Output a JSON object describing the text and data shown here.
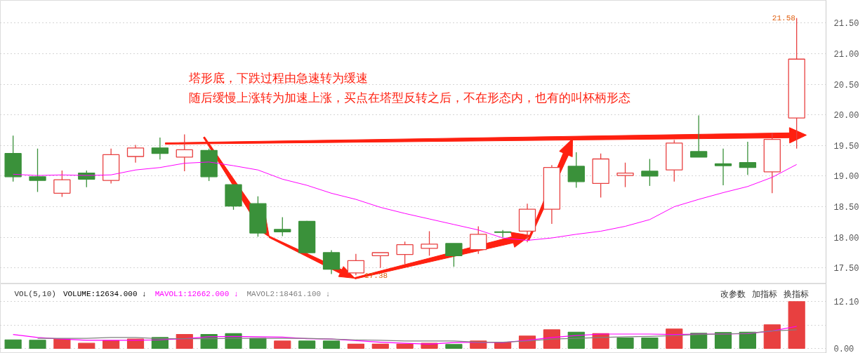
{
  "chart_data": [
    {
      "type": "candlestick",
      "categories": [
        null,
        null,
        null,
        null,
        null,
        null,
        null,
        null,
        null,
        null,
        null,
        null,
        null,
        null,
        null,
        null,
        null,
        null,
        null,
        null,
        null,
        null,
        null,
        null,
        null,
        null,
        null,
        null,
        null,
        null,
        null,
        null,
        null
      ],
      "ohlc": [
        [
          19.37,
          19.66,
          18.91,
          18.99
        ],
        [
          18.99,
          19.45,
          18.74,
          18.93
        ],
        [
          18.72,
          19.09,
          18.66,
          18.94
        ],
        [
          19.05,
          19.09,
          18.82,
          18.95
        ],
        [
          18.93,
          19.45,
          18.88,
          19.35
        ],
        [
          19.32,
          19.51,
          19.22,
          19.46
        ],
        [
          19.46,
          19.63,
          19.27,
          19.37
        ],
        [
          19.31,
          19.68,
          19.08,
          19.43
        ],
        [
          19.42,
          19.45,
          18.92,
          18.99
        ],
        [
          18.86,
          18.86,
          18.45,
          18.51
        ],
        [
          18.55,
          18.67,
          18.01,
          18.07
        ],
        [
          18.13,
          18.33,
          18.02,
          18.09
        ],
        [
          18.26,
          18.27,
          17.74,
          17.75
        ],
        [
          17.75,
          17.79,
          17.4,
          17.48
        ],
        [
          17.42,
          17.73,
          17.38,
          17.62
        ],
        [
          17.7,
          17.75,
          17.5,
          17.75
        ],
        [
          17.72,
          17.93,
          17.56,
          17.88
        ],
        [
          17.82,
          18.1,
          17.7,
          17.89
        ],
        [
          17.9,
          17.9,
          17.52,
          17.7
        ],
        [
          17.8,
          18.18,
          17.73,
          18.05
        ],
        [
          18.09,
          18.12,
          18.0,
          18.08
        ],
        [
          18.1,
          18.55,
          17.92,
          18.46
        ],
        [
          18.46,
          19.18,
          18.22,
          19.14
        ],
        [
          19.16,
          19.39,
          18.81,
          18.91
        ],
        [
          18.88,
          19.37,
          18.65,
          19.28
        ],
        [
          19.01,
          19.22,
          18.82,
          19.05
        ],
        [
          19.08,
          19.28,
          18.84,
          19.0
        ],
        [
          19.1,
          19.59,
          18.91,
          19.54
        ],
        [
          19.4,
          19.99,
          19.31,
          19.31
        ],
        [
          19.2,
          19.45,
          18.85,
          19.17
        ],
        [
          19.22,
          19.56,
          19.02,
          19.14
        ],
        [
          19.07,
          19.7,
          18.72,
          19.6
        ],
        [
          19.95,
          21.58,
          19.45,
          20.91
        ]
      ],
      "colors": [
        "#3a913a",
        "#3a913a",
        "#e84040",
        "#3a913a",
        "#e84040",
        "#e84040",
        "#3a913a",
        "#e84040",
        "#3a913a",
        "#3a913a",
        "#3a913a",
        "#3a913a",
        "#3a913a",
        "#3a913a",
        "#e84040",
        "#e84040",
        "#e84040",
        "#e84040",
        "#3a913a",
        "#e84040",
        "#3a913a",
        "#e84040",
        "#e84040",
        "#3a913a",
        "#e84040",
        "#e84040",
        "#3a913a",
        "#e84040",
        "#3a913a",
        "#3a913a",
        "#3a913a",
        "#e84040",
        "#e84040"
      ],
      "series": [
        {
          "type": "line",
          "color": "#ff00ff",
          "values": [
            19.03,
            19.01,
            19.02,
            19.01,
            19.02,
            19.1,
            19.14,
            19.21,
            19.23,
            19.17,
            19.1,
            18.95,
            18.85,
            18.72,
            18.62,
            18.49,
            18.39,
            18.3,
            18.21,
            18.12,
            17.99,
            17.95,
            17.99,
            18.05,
            18.1,
            18.18,
            18.29,
            18.5,
            18.62,
            18.73,
            18.83,
            18.98,
            19.19
          ]
        }
      ],
      "ylim": [
        17.24,
        21.87
      ],
      "yticks": [
        {
          "value": 17.5,
          "label": "17.50"
        },
        {
          "value": 18.0,
          "label": "18.00"
        },
        {
          "value": 18.5,
          "label": "18.50"
        },
        {
          "value": 19.0,
          "label": "19.00"
        },
        {
          "value": 19.5,
          "label": "19.50"
        },
        {
          "value": 20.0,
          "label": "20.00"
        },
        {
          "value": 20.5,
          "label": "20.50"
        },
        {
          "value": 21.0,
          "label": "21.00"
        },
        {
          "value": 21.5,
          "label": "21.50"
        }
      ],
      "grid": "y",
      "tick_labels": "y",
      "annotations": [
        "塔形底，下跌过程由急速转为缓速",
        "随后缓慢上涨转为加速上涨，买点在塔型反转之后，不在形态内，也有的叫杯柄形态",
        "17.38",
        "21.58"
      ]
    },
    {
      "type": "bar",
      "title": "VOL(5,10)",
      "categories": [
        null,
        null,
        null,
        null,
        null,
        null,
        null,
        null,
        null,
        null,
        null,
        null,
        null,
        null,
        null,
        null,
        null,
        null,
        null,
        null,
        null,
        null,
        null,
        null,
        null,
        null,
        null,
        null,
        null,
        null,
        null,
        null,
        null
      ],
      "series": [
        {
          "colors": [
            "#3a913a",
            "#3a913a",
            "#e84040",
            "#e84040",
            "#e84040",
            "#e84040",
            "#3a913a",
            "#e84040",
            "#3a913a",
            "#3a913a",
            "#3a913a",
            "#e84040",
            "#3a913a",
            "#3a913a",
            "#e84040",
            "#e84040",
            "#e84040",
            "#e84040",
            "#3a913a",
            "#e84040",
            "#e84040",
            "#e84040",
            "#e84040",
            "#3a913a",
            "#e84040",
            "#3a913a",
            "#3a913a",
            "#e84040",
            "#3a913a",
            "#3a913a",
            "#3a913a",
            "#e84040",
            "#e84040"
          ],
          "values": [
            2.2,
            2.1,
            2.4,
            1.3,
            2.0,
            2.4,
            2.8,
            3.6,
            3.6,
            3.8,
            2.6,
            1.9,
            1.9,
            1.9,
            1.1,
            1.1,
            1.1,
            1.3,
            1.0,
            1.9,
            1.5,
            3.2,
            4.8,
            4.2,
            3.8,
            2.7,
            2.7,
            5.0,
            3.9,
            4.1,
            4.2,
            6.1,
            12.1
          ]
        },
        {
          "type": "line",
          "name": "MAVOL1:12662.000 ↓",
          "color": "#ff00ff",
          "values": [
            3.6,
            2.8,
            2.4,
            2.1,
            2.1,
            2.1,
            2.2,
            2.5,
            3.0,
            3.1,
            3.0,
            2.9,
            2.5,
            2.4,
            2.0,
            1.6,
            1.3,
            1.1,
            1.5,
            1.6,
            1.5,
            2.1,
            2.8,
            3.3,
            3.7,
            3.7,
            3.7,
            3.6,
            3.7,
            3.7,
            3.8,
            4.5,
            5.7
          ]
        },
        {
          "type": "line",
          "name": "MAVOL2:18461.100 ↓",
          "color": "#808080",
          "values": [
            null,
            2.6,
            2.6,
            2.6,
            2.8,
            2.8,
            2.5,
            2.5,
            2.5,
            2.6,
            2.6,
            2.6,
            2.6,
            2.4,
            2.2,
            2.1,
            1.9,
            1.9,
            1.9,
            1.6,
            1.6,
            1.9,
            2.4,
            2.6,
            2.8,
            3.0,
            3.1,
            3.3,
            3.6,
            3.7,
            3.9,
            4.5,
            4.8
          ]
        }
      ],
      "ylim": [
        -1.3,
        16.7
      ],
      "yticks": [
        {
          "value": 0,
          "label": "0.00"
        },
        {
          "value": 6.05,
          "label": null
        },
        {
          "value": 12.1,
          "label": "12.10"
        }
      ],
      "grid": "y",
      "tick_labels": "y",
      "legend": "top left",
      "annotations": [
        "VOLUME:12634.000 ↓",
        "改参数",
        "加指标",
        "换指标"
      ]
    }
  ]
}
